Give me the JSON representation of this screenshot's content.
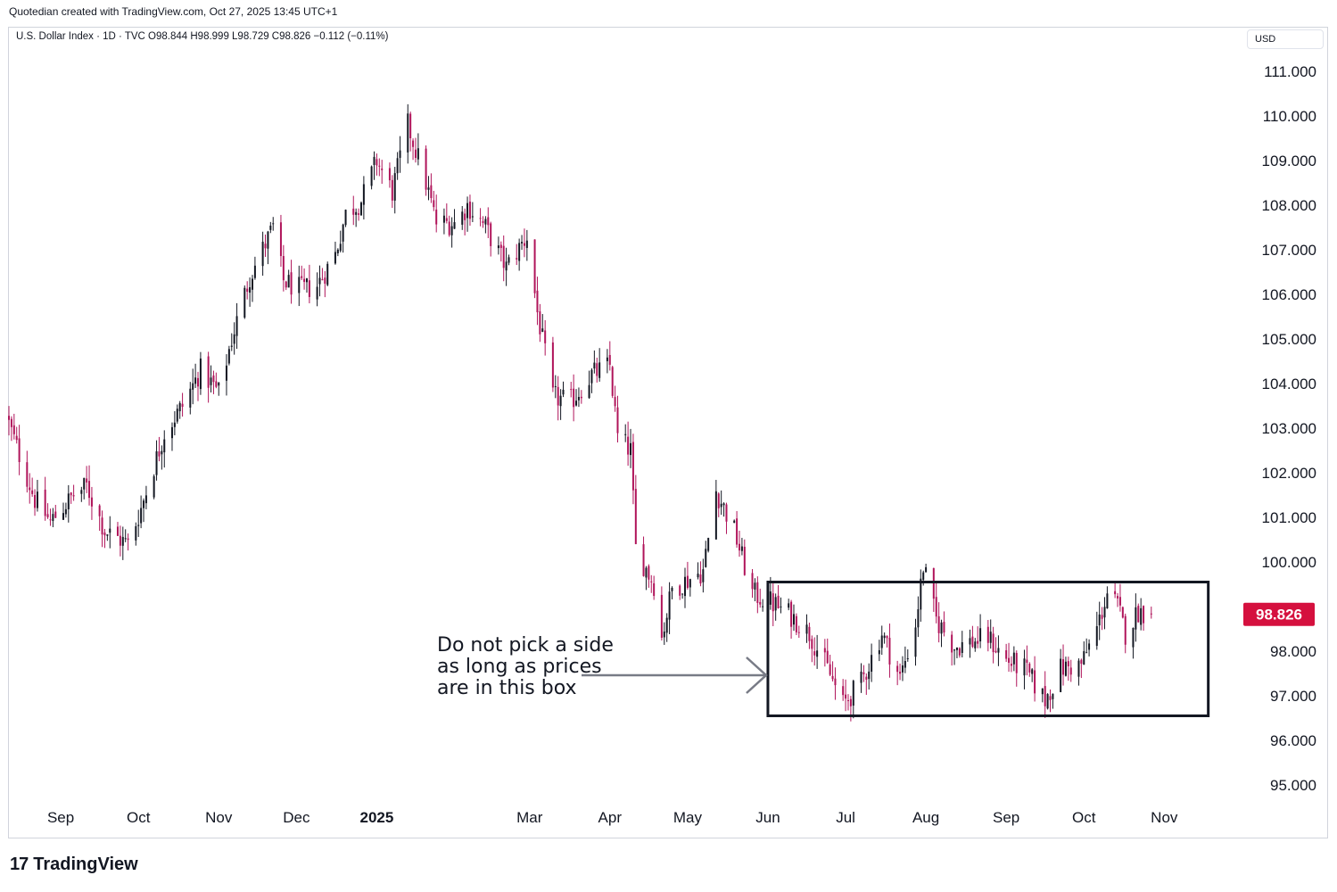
{
  "header": {
    "created_by": "Quotedian created with TradingView.com, Oct 27, 2025 13:45 UTC+1",
    "legend": "U.S. Dollar Index · 1D · TVC  O98.844  H98.999  L98.729  C98.826  −0.112 (−0.11%)",
    "currency": "USD"
  },
  "branding": {
    "name": "TradingView",
    "logo_text": "17"
  },
  "chart_data": {
    "type": "candlestick",
    "title": "U.S. Dollar Index",
    "interval": "1D",
    "source": "TVC",
    "ohlc": {
      "open": 98.844,
      "high": 98.999,
      "low": 98.729,
      "close": 98.826,
      "change": -0.112,
      "change_pct": -0.11
    },
    "ylim": [
      94.6,
      111.6
    ],
    "y_ticks": [
      "111.000",
      "110.000",
      "109.000",
      "108.000",
      "107.000",
      "106.000",
      "105.000",
      "104.000",
      "103.000",
      "102.000",
      "101.000",
      "100.000",
      "98.000",
      "97.000",
      "96.000",
      "95.000"
    ],
    "x_ticks": [
      "Sep",
      "Oct",
      "Nov",
      "Dec",
      "2025",
      "Mar",
      "Apr",
      "May",
      "Jun",
      "Jul",
      "Aug",
      "Sep",
      "Oct",
      "Nov"
    ],
    "x_range": [
      "2024-08-12",
      "2025-11-25"
    ],
    "x_tick_dates": [
      "2024-09-01",
      "2024-10-01",
      "2024-11-01",
      "2024-12-01",
      "2025-01-01",
      "2025-03-01",
      "2025-04-01",
      "2025-05-01",
      "2025-06-01",
      "2025-07-01",
      "2025-08-01",
      "2025-09-01",
      "2025-10-01",
      "2025-11-01"
    ],
    "last_price_label": "98.826",
    "colors": {
      "up": "#131722",
      "down": "#b0145a",
      "last_price_bg": "#d5103e",
      "grid": "none"
    },
    "grid": false,
    "box": {
      "x_start": "2025-06-01",
      "x_end": "2025-11-18",
      "y_low": 96.55,
      "y_high": 99.55
    },
    "annotation": {
      "lines": [
        "Do not pick a side",
        "as long as prices",
        "are in this box"
      ],
      "arrow": "right"
    },
    "anchors": [
      [
        "2024-08-12",
        103.1
      ],
      [
        "2024-08-16",
        102.4
      ],
      [
        "2024-08-22",
        101.4
      ],
      [
        "2024-08-28",
        100.9
      ],
      [
        "2024-09-06",
        101.5
      ],
      [
        "2024-09-11",
        101.7
      ],
      [
        "2024-09-18",
        100.7
      ],
      [
        "2024-09-27",
        100.4
      ],
      [
        "2024-10-02",
        101.2
      ],
      [
        "2024-10-11",
        102.9
      ],
      [
        "2024-10-18",
        103.5
      ],
      [
        "2024-10-25",
        104.3
      ],
      [
        "2024-11-01",
        103.8
      ],
      [
        "2024-11-06",
        105.0
      ],
      [
        "2024-11-13",
        106.4
      ],
      [
        "2024-11-22",
        107.5
      ],
      [
        "2024-11-26",
        106.3
      ],
      [
        "2024-12-03",
        106.1
      ],
      [
        "2024-12-09",
        106.2
      ],
      [
        "2024-12-16",
        106.9
      ],
      [
        "2024-12-20",
        107.8
      ],
      [
        "2024-12-26",
        108.1
      ],
      [
        "2025-01-01",
        109.0
      ],
      [
        "2025-01-07",
        108.3
      ],
      [
        "2025-01-13",
        109.8
      ],
      [
        "2025-01-20",
        108.5
      ],
      [
        "2025-01-24",
        107.6
      ],
      [
        "2025-02-01",
        107.6
      ],
      [
        "2025-02-05",
        108.0
      ],
      [
        "2025-02-12",
        107.5
      ],
      [
        "2025-02-20",
        106.6
      ],
      [
        "2025-02-28",
        107.3
      ],
      [
        "2025-03-04",
        105.6
      ],
      [
        "2025-03-10",
        103.7
      ],
      [
        "2025-03-17",
        103.6
      ],
      [
        "2025-03-25",
        104.2
      ],
      [
        "2025-04-01",
        104.4
      ],
      [
        "2025-04-04",
        102.8
      ],
      [
        "2025-04-09",
        102.5
      ],
      [
        "2025-04-11",
        100.3
      ],
      [
        "2025-04-18",
        99.5
      ],
      [
        "2025-04-21",
        98.3
      ],
      [
        "2025-04-25",
        99.4
      ],
      [
        "2025-05-01",
        99.6
      ],
      [
        "2025-05-07",
        99.8
      ],
      [
        "2025-05-12",
        101.6
      ],
      [
        "2025-05-19",
        100.7
      ],
      [
        "2025-05-26",
        99.3
      ],
      [
        "2025-06-02",
        99.1
      ],
      [
        "2025-06-10",
        98.8
      ],
      [
        "2025-06-17",
        98.4
      ],
      [
        "2025-06-24",
        97.6
      ],
      [
        "2025-06-30",
        96.8
      ],
      [
        "2025-07-07",
        97.3
      ],
      [
        "2025-07-15",
        98.4
      ],
      [
        "2025-07-22",
        97.4
      ],
      [
        "2025-07-28",
        98.6
      ],
      [
        "2025-07-31",
        99.9
      ],
      [
        "2025-08-05",
        98.7
      ],
      [
        "2025-08-12",
        98.1
      ],
      [
        "2025-08-18",
        98.2
      ],
      [
        "2025-08-25",
        98.3
      ],
      [
        "2025-09-01",
        97.8
      ],
      [
        "2025-09-08",
        97.6
      ],
      [
        "2025-09-16",
        96.9
      ],
      [
        "2025-09-22",
        97.6
      ],
      [
        "2025-09-30",
        97.7
      ],
      [
        "2025-10-06",
        98.5
      ],
      [
        "2025-10-10",
        99.3
      ],
      [
        "2025-10-14",
        99.0
      ],
      [
        "2025-10-17",
        98.4
      ],
      [
        "2025-10-22",
        98.9
      ],
      [
        "2025-10-27",
        98.826
      ]
    ]
  }
}
